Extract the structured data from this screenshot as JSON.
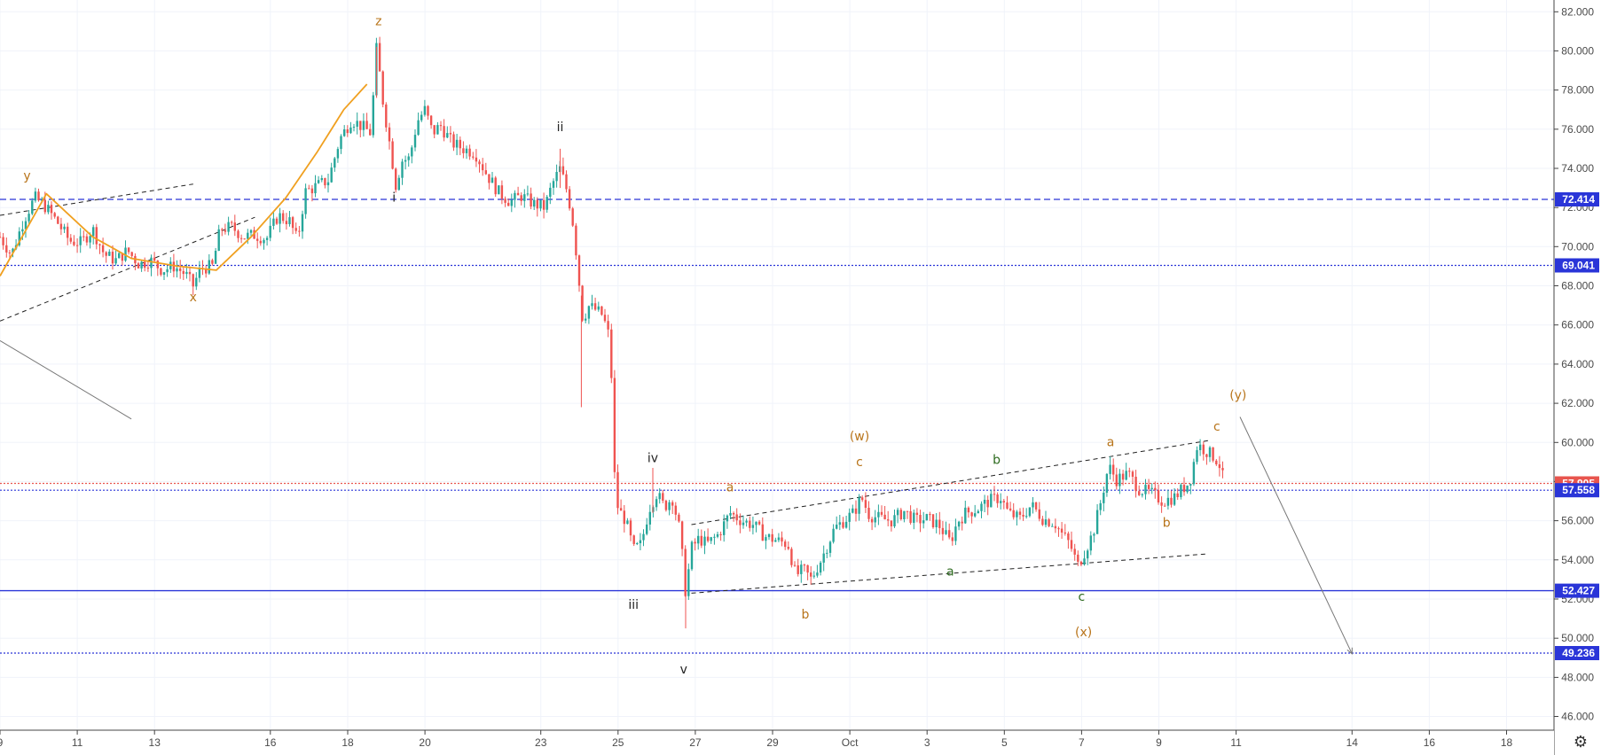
{
  "chart_data": {
    "type": "candlestick",
    "x_ticks": [
      "9",
      "11",
      "13",
      "16",
      "18",
      "20",
      "23",
      "25",
      "27",
      "29",
      "Oct",
      "3",
      "5",
      "7",
      "9",
      "11",
      "14",
      "16",
      "18"
    ],
    "y_ticks": [
      "82.000",
      "80.000",
      "78.000",
      "76.000",
      "74.000",
      "72.000",
      "70.000",
      "68.000",
      "66.000",
      "64.000",
      "62.000",
      "60.000",
      "58.000",
      "56.000",
      "54.000",
      "52.000",
      "50.000",
      "48.000",
      "46.000"
    ],
    "ylim": [
      45.3,
      82.6
    ],
    "price_lines": [
      {
        "value": 72.414,
        "label": "72.414",
        "style": "dashed",
        "color": "#2a35d8"
      },
      {
        "value": 69.041,
        "label": "69.041",
        "style": "dotted",
        "color": "#2a35d8"
      },
      {
        "value": 57.905,
        "label": "57.905",
        "style": "dotted",
        "color": "#e8554e"
      },
      {
        "value": 57.558,
        "label": "57.558",
        "style": "dotted",
        "color": "#2a35d8"
      },
      {
        "value": 52.427,
        "label": "52.427",
        "style": "solid",
        "color": "#2a35d8"
      },
      {
        "value": 49.236,
        "label": "49.236",
        "style": "dotted",
        "color": "#2a35d8"
      }
    ],
    "wave_labels": [
      {
        "text": "y",
        "t": 0.7,
        "price": 73.4,
        "color": "#b8741a"
      },
      {
        "text": "x",
        "t": 5.0,
        "price": 67.2,
        "color": "#b8741a"
      },
      {
        "text": "z",
        "t": 9.8,
        "price": 81.3,
        "color": "#b8741a"
      },
      {
        "text": "i",
        "t": 10.2,
        "price": 72.3,
        "color": "#222222"
      },
      {
        "text": "ii",
        "t": 14.5,
        "price": 75.9,
        "color": "#222222"
      },
      {
        "text": "iii",
        "t": 16.4,
        "price": 51.5,
        "color": "#222222"
      },
      {
        "text": "iv",
        "t": 16.9,
        "price": 59.0,
        "color": "#222222"
      },
      {
        "text": "v",
        "t": 17.7,
        "price": 48.2,
        "color": "#222222"
      },
      {
        "text": "a",
        "t": 18.9,
        "price": 57.5,
        "color": "#b8741a"
      },
      {
        "text": "b",
        "t": 20.85,
        "price": 51.0,
        "color": "#b8741a"
      },
      {
        "text": "(w)",
        "t": 22.25,
        "price": 60.1,
        "color": "#b8741a"
      },
      {
        "text": "c",
        "t": 22.25,
        "price": 58.8,
        "color": "#b8741a"
      },
      {
        "text": "a",
        "t": 24.6,
        "price": 53.2,
        "color": "#2e6b1f"
      },
      {
        "text": "b",
        "t": 25.8,
        "price": 58.9,
        "color": "#2e6b1f"
      },
      {
        "text": "c",
        "t": 28.0,
        "price": 51.9,
        "color": "#2e6b1f"
      },
      {
        "text": "(x)",
        "t": 28.05,
        "price": 50.1,
        "color": "#b8741a"
      },
      {
        "text": "a",
        "t": 28.75,
        "price": 59.8,
        "color": "#b8741a"
      },
      {
        "text": "b",
        "t": 30.2,
        "price": 55.7,
        "color": "#b8741a"
      },
      {
        "text": "c",
        "t": 31.5,
        "price": 60.6,
        "color": "#b8741a"
      },
      {
        "text": "(y)",
        "t": 32.05,
        "price": 62.2,
        "color": "#b8741a"
      }
    ],
    "trendlines": [
      {
        "from": [
          0,
          71.6
        ],
        "to": [
          5.0,
          73.2
        ],
        "style": "dashed",
        "color": "#222222"
      },
      {
        "from": [
          0,
          66.2
        ],
        "to": [
          6.6,
          71.5
        ],
        "style": "dashed",
        "color": "#222222"
      },
      {
        "from": [
          0,
          65.2
        ],
        "to": [
          3.4,
          61.2
        ],
        "style": "solid",
        "color": "#777777"
      },
      {
        "from": [
          17.9,
          55.8
        ],
        "to": [
          31.3,
          60.1
        ],
        "style": "dashed",
        "color": "#222222"
      },
      {
        "from": [
          17.9,
          52.3
        ],
        "to": [
          31.2,
          54.3
        ],
        "style": "dashed",
        "color": "#222222"
      },
      {
        "from": [
          32.1,
          61.3
        ],
        "to": [
          35.0,
          49.2
        ],
        "style": "solid",
        "color": "#777777",
        "arrow": true
      }
    ],
    "curve": {
      "color": "#f0a020",
      "points": [
        [
          0,
          68.5
        ],
        [
          1.2,
          72.7
        ],
        [
          2.4,
          70.5
        ],
        [
          3.4,
          69.4
        ],
        [
          4.6,
          69.0
        ],
        [
          5.6,
          68.8
        ],
        [
          6.5,
          70.5
        ],
        [
          7.4,
          72.5
        ],
        [
          8.2,
          74.8
        ],
        [
          8.9,
          77.0
        ],
        [
          9.5,
          78.3
        ]
      ]
    },
    "ohlc_path": [
      [
        0,
        70.5
      ],
      [
        0.3,
        69.6
      ],
      [
        0.6,
        71.3
      ],
      [
        0.9,
        72.5
      ],
      [
        1.2,
        72.0
      ],
      [
        1.5,
        71.2
      ],
      [
        1.8,
        70.3
      ],
      [
        2.1,
        70.2
      ],
      [
        2.4,
        70.9
      ],
      [
        2.7,
        69.6
      ],
      [
        3.0,
        69.3
      ],
      [
        3.3,
        69.8
      ],
      [
        3.6,
        69.1
      ],
      [
        3.9,
        69.3
      ],
      [
        4.2,
        68.8
      ],
      [
        4.5,
        69.0
      ],
      [
        4.8,
        68.6
      ],
      [
        5.0,
        68.0
      ],
      [
        5.2,
        68.9
      ],
      [
        5.5,
        69.0
      ],
      [
        5.7,
        70.9
      ],
      [
        6.0,
        71.0
      ],
      [
        6.3,
        70.5
      ],
      [
        6.6,
        70.6
      ],
      [
        6.9,
        70.4
      ],
      [
        7.2,
        71.6
      ],
      [
        7.5,
        71.3
      ],
      [
        7.7,
        70.3
      ],
      [
        7.9,
        72.8
      ],
      [
        8.2,
        73.1
      ],
      [
        8.5,
        73.4
      ],
      [
        8.8,
        75.5
      ],
      [
        9.1,
        76.5
      ],
      [
        9.4,
        76.1
      ],
      [
        9.6,
        75.8
      ],
      [
        9.75,
        80.2
      ],
      [
        9.9,
        77.6
      ],
      [
        10.1,
        75.1
      ],
      [
        10.25,
        73.1
      ],
      [
        10.4,
        74.4
      ],
      [
        10.6,
        74.5
      ],
      [
        10.8,
        76.4
      ],
      [
        11.0,
        77.0
      ],
      [
        11.2,
        75.8
      ],
      [
        11.4,
        76.2
      ],
      [
        11.7,
        75.3
      ],
      [
        12.0,
        75.0
      ],
      [
        12.3,
        74.8
      ],
      [
        12.6,
        73.7
      ],
      [
        12.9,
        72.8
      ],
      [
        13.2,
        72.3
      ],
      [
        13.5,
        72.6
      ],
      [
        13.8,
        72.2
      ],
      [
        14.1,
        72.0
      ],
      [
        14.3,
        73.2
      ],
      [
        14.5,
        74.0
      ],
      [
        14.7,
        72.7
      ],
      [
        14.85,
        71.0
      ],
      [
        15.0,
        68.0
      ],
      [
        15.1,
        66.0
      ],
      [
        15.2,
        67.0
      ],
      [
        15.4,
        66.8
      ],
      [
        15.6,
        66.5
      ],
      [
        15.8,
        65.2
      ],
      [
        15.9,
        58.5
      ],
      [
        16.0,
        56.6
      ],
      [
        16.2,
        56.0
      ],
      [
        16.4,
        54.5
      ],
      [
        16.6,
        54.8
      ],
      [
        16.8,
        56.6
      ],
      [
        17.0,
        57.4
      ],
      [
        17.2,
        56.7
      ],
      [
        17.4,
        57.2
      ],
      [
        17.6,
        55.5
      ],
      [
        17.75,
        52.3
      ],
      [
        17.9,
        54.6
      ],
      [
        18.1,
        55.1
      ],
      [
        18.3,
        54.8
      ],
      [
        18.6,
        55.3
      ],
      [
        18.9,
        56.4
      ],
      [
        19.2,
        56.0
      ],
      [
        19.5,
        55.8
      ],
      [
        19.8,
        55.2
      ],
      [
        20.1,
        55.0
      ],
      [
        20.4,
        54.8
      ],
      [
        20.6,
        53.2
      ],
      [
        20.8,
        53.5
      ],
      [
        21.0,
        53.0
      ],
      [
        21.3,
        54.2
      ],
      [
        21.6,
        55.6
      ],
      [
        21.9,
        56.1
      ],
      [
        22.1,
        56.4
      ],
      [
        22.3,
        57.2
      ],
      [
        22.5,
        56.3
      ],
      [
        22.8,
        56.1
      ],
      [
        23.1,
        56.0
      ],
      [
        23.4,
        56.5
      ],
      [
        23.7,
        56.0
      ],
      [
        24.0,
        56.1
      ],
      [
        24.3,
        55.8
      ],
      [
        24.6,
        54.9
      ],
      [
        24.8,
        56.0
      ],
      [
        25.0,
        56.4
      ],
      [
        25.3,
        56.6
      ],
      [
        25.6,
        57.0
      ],
      [
        25.9,
        57.2
      ],
      [
        26.1,
        56.4
      ],
      [
        26.4,
        56.1
      ],
      [
        26.7,
        56.8
      ],
      [
        27.0,
        56.1
      ],
      [
        27.3,
        55.9
      ],
      [
        27.5,
        55.3
      ],
      [
        27.7,
        54.8
      ],
      [
        27.9,
        53.7
      ],
      [
        28.1,
        54.5
      ],
      [
        28.3,
        55.4
      ],
      [
        28.5,
        57.0
      ],
      [
        28.7,
        58.8
      ],
      [
        28.9,
        58.1
      ],
      [
        29.2,
        58.4
      ],
      [
        29.5,
        57.6
      ],
      [
        29.8,
        57.4
      ],
      [
        30.1,
        57.0
      ],
      [
        30.4,
        57.2
      ],
      [
        30.6,
        57.6
      ],
      [
        30.8,
        58.0
      ],
      [
        31.0,
        59.9
      ],
      [
        31.2,
        59.6
      ],
      [
        31.4,
        59.3
      ],
      [
        31.55,
        59.0
      ],
      [
        31.7,
        57.9
      ]
    ]
  }
}
